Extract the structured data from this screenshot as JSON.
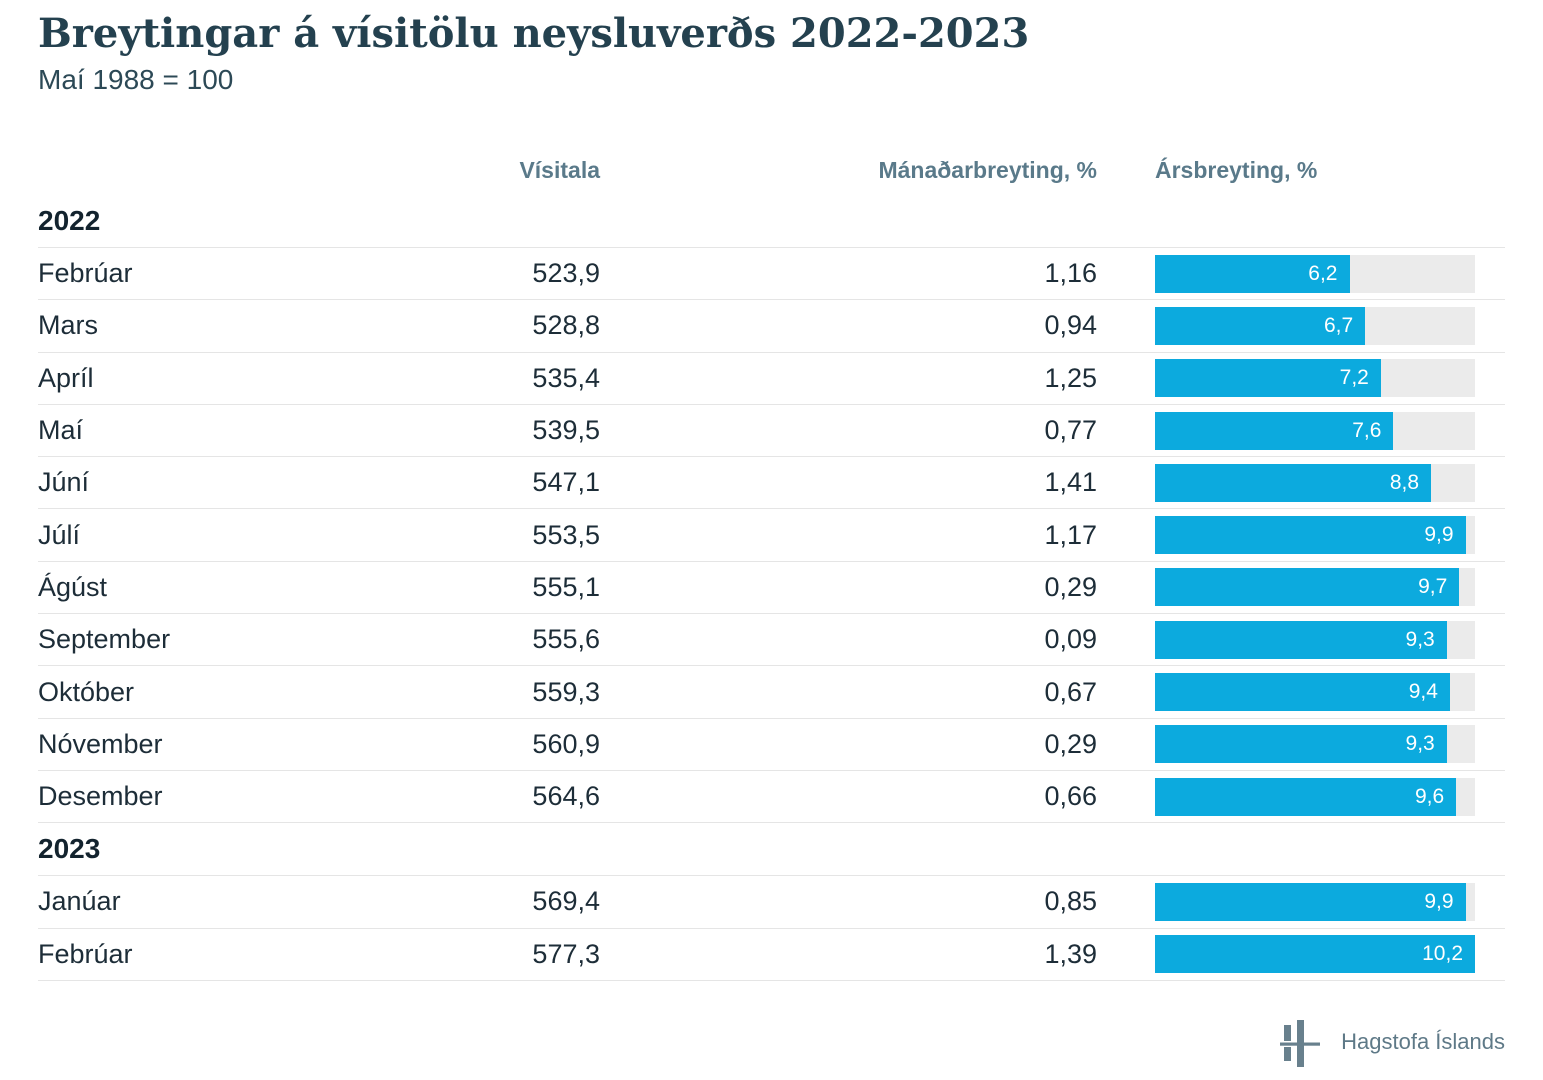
{
  "page": {
    "title": "Breytingar á vísitölu neysluverðs 2022-2023",
    "subtitle": "Maí 1988 = 100"
  },
  "table": {
    "columns": {
      "visitala": "Vísitala",
      "monthly": "Mánaðarbreyting, %",
      "yearly": "Ársbreyting, %"
    },
    "bar_max": 10.2,
    "sections": [
      {
        "year": "2022",
        "rows": [
          {
            "month": "Febrúar",
            "visitala": "523,9",
            "monthly": "1,16",
            "yearly": "6,2"
          },
          {
            "month": "Mars",
            "visitala": "528,8",
            "monthly": "0,94",
            "yearly": "6,7"
          },
          {
            "month": "Apríl",
            "visitala": "535,4",
            "monthly": "1,25",
            "yearly": "7,2"
          },
          {
            "month": "Maí",
            "visitala": "539,5",
            "monthly": "0,77",
            "yearly": "7,6"
          },
          {
            "month": "Júní",
            "visitala": "547,1",
            "monthly": "1,41",
            "yearly": "8,8"
          },
          {
            "month": "Júlí",
            "visitala": "553,5",
            "monthly": "1,17",
            "yearly": "9,9"
          },
          {
            "month": "Ágúst",
            "visitala": "555,1",
            "monthly": "0,29",
            "yearly": "9,7"
          },
          {
            "month": "September",
            "visitala": "555,6",
            "monthly": "0,09",
            "yearly": "9,3"
          },
          {
            "month": "Október",
            "visitala": "559,3",
            "monthly": "0,67",
            "yearly": "9,4"
          },
          {
            "month": "Nóvember",
            "visitala": "560,9",
            "monthly": "0,29",
            "yearly": "9,3"
          },
          {
            "month": "Desember",
            "visitala": "564,6",
            "monthly": "0,66",
            "yearly": "9,6"
          }
        ]
      },
      {
        "year": "2023",
        "rows": [
          {
            "month": "Janúar",
            "visitala": "569,4",
            "monthly": "0,85",
            "yearly": "9,9"
          },
          {
            "month": "Febrúar",
            "visitala": "577,3",
            "monthly": "1,39",
            "yearly": "10,2"
          }
        ]
      }
    ]
  },
  "footer": {
    "org": "Hagstofa Íslands",
    "logo_icon": "hagstofa-logo"
  },
  "colors": {
    "bar": "#0caade",
    "track": "#ebebeb",
    "header_text": "#5a7a8a",
    "title_text": "#24414f",
    "logo": "#68808d"
  },
  "chart_data": {
    "type": "bar",
    "title": "Breytingar á vísitölu neysluverðs 2022-2023",
    "subtitle": "Maí 1988 = 100",
    "categories": [
      "2022 Febrúar",
      "2022 Mars",
      "2022 Apríl",
      "2022 Maí",
      "2022 Júní",
      "2022 Júlí",
      "2022 Ágúst",
      "2022 September",
      "2022 Október",
      "2022 Nóvember",
      "2022 Desember",
      "2023 Janúar",
      "2023 Febrúar"
    ],
    "series": [
      {
        "name": "Vísitala",
        "values": [
          523.9,
          528.8,
          535.4,
          539.5,
          547.1,
          553.5,
          555.1,
          555.6,
          559.3,
          560.9,
          564.6,
          569.4,
          577.3
        ]
      },
      {
        "name": "Mánaðarbreyting, %",
        "values": [
          1.16,
          0.94,
          1.25,
          0.77,
          1.41,
          1.17,
          0.29,
          0.09,
          0.67,
          0.29,
          0.66,
          0.85,
          1.39
        ]
      },
      {
        "name": "Ársbreyting, %",
        "values": [
          6.2,
          6.7,
          7.2,
          7.6,
          8.8,
          9.9,
          9.7,
          9.3,
          9.4,
          9.3,
          9.6,
          9.9,
          10.2
        ]
      }
    ],
    "bar_series": "Ársbreyting, %",
    "xlabel": "",
    "ylabel": "",
    "bar_range": [
      0,
      10.2
    ],
    "legend_position": "none",
    "grid": "off"
  }
}
